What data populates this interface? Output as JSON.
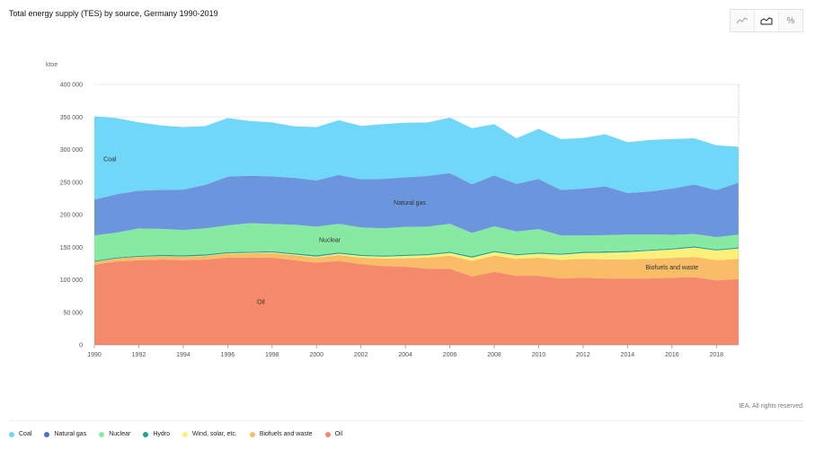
{
  "title": "Total energy supply (TES) by source, Germany 1990-2019",
  "toolbar": {
    "buttons": [
      {
        "icon": "line-chart-icon",
        "label": ""
      },
      {
        "icon": "area-chart-icon",
        "label": ""
      },
      {
        "icon": "percent-icon",
        "label": "%"
      }
    ]
  },
  "credit": "IEA. All rights reserved.",
  "chart_data": {
    "type": "area",
    "stacked": true,
    "title": "Total energy supply (TES) by source, Germany 1990-2019",
    "ylabel": "ktoe",
    "xlabel": "",
    "ylim": [
      0,
      400000
    ],
    "y_ticks": [
      0,
      50000,
      100000,
      150000,
      200000,
      250000,
      300000,
      350000,
      400000
    ],
    "y_tick_labels": [
      "0",
      "50 000",
      "100 000",
      "150 000",
      "200 000",
      "250 000",
      "300 000",
      "350 000",
      "400 000"
    ],
    "x_tick_labels": [
      "1990",
      "1992",
      "1994",
      "1996",
      "1998",
      "2000",
      "2002",
      "2004",
      "2006",
      "2008",
      "2010",
      "2012",
      "2014",
      "2016",
      "2018"
    ],
    "x": [
      1990,
      1991,
      1992,
      1993,
      1994,
      1995,
      1996,
      1997,
      1998,
      1999,
      2000,
      2001,
      2002,
      2003,
      2004,
      2005,
      2006,
      2007,
      2008,
      2009,
      2010,
      2011,
      2012,
      2013,
      2014,
      2015,
      2016,
      2017,
      2018,
      2019
    ],
    "grid": true,
    "legend": "bottom",
    "series": [
      {
        "name": "Oil",
        "color": "#f4896b",
        "values": [
          123000,
          128000,
          130000,
          131000,
          130000,
          131000,
          134000,
          134000,
          134000,
          130000,
          126000,
          129000,
          124000,
          121000,
          120000,
          117000,
          117000,
          105000,
          112000,
          106000,
          106000,
          102000,
          103000,
          102000,
          102000,
          102000,
          103000,
          104000,
          99000,
          101000
        ]
      },
      {
        "name": "Biofuels and waste",
        "color": "#f8bd66",
        "values": [
          4500,
          4700,
          4900,
          5100,
          5300,
          5600,
          6000,
          6500,
          7000,
          7500,
          8000,
          9000,
          10000,
          11500,
          13000,
          17000,
          20000,
          24000,
          25000,
          26000,
          28000,
          28500,
          29000,
          29500,
          29500,
          30000,
          30500,
          31000,
          31000,
          31000
        ]
      },
      {
        "name": "Wind, solar, etc.",
        "color": "#fdf07a",
        "values": [
          100,
          150,
          250,
          350,
          450,
          550,
          700,
          900,
          1100,
          1300,
          1600,
          2000,
          2500,
          3000,
          3500,
          3800,
          4200,
          5000,
          5300,
          5600,
          6000,
          8000,
          9000,
          10000,
          11000,
          12500,
          12800,
          14500,
          15000,
          16000
        ]
      },
      {
        "name": "Hydro",
        "color": "#1ba398",
        "values": [
          1500,
          1400,
          1600,
          1600,
          1700,
          1800,
          1700,
          1500,
          1600,
          1700,
          1900,
          1900,
          1800,
          1600,
          1800,
          1700,
          1700,
          1800,
          1800,
          1600,
          1800,
          1500,
          1800,
          1900,
          1700,
          1600,
          1700,
          1700,
          1500,
          1700
        ]
      },
      {
        "name": "Nuclear",
        "color": "#88eaa2",
        "values": [
          39000,
          38000,
          42000,
          40000,
          39000,
          40000,
          41000,
          44000,
          42000,
          44000,
          44000,
          44000,
          42000,
          42000,
          43000,
          42000,
          43000,
          36000,
          38000,
          35000,
          36000,
          28000,
          25000,
          25000,
          25000,
          23500,
          21000,
          19000,
          19000,
          19500
        ]
      },
      {
        "name": "Natural gas",
        "color": "#6b95dc",
        "values": [
          55000,
          59000,
          58000,
          60000,
          62000,
          67000,
          75000,
          73000,
          73000,
          72000,
          71000,
          75000,
          74000,
          76000,
          76000,
          78000,
          78000,
          75000,
          78000,
          73000,
          77000,
          70000,
          72000,
          75000,
          64000,
          66000,
          71000,
          76000,
          72000,
          80000
        ]
      },
      {
        "name": "Coal",
        "color": "#71d7f8",
        "values": [
          128000,
          117000,
          105000,
          99000,
          96000,
          90000,
          90000,
          84000,
          83000,
          79000,
          82000,
          84000,
          82000,
          84000,
          84000,
          82000,
          85000,
          86000,
          79000,
          70000,
          77000,
          78000,
          78000,
          80000,
          78000,
          79000,
          76000,
          71000,
          69000,
          55000
        ]
      }
    ],
    "annotations": [
      {
        "text": "Coal",
        "x": 1990.7,
        "y": 282000
      },
      {
        "text": "Natural gas",
        "x": 2004.2,
        "y": 215000
      },
      {
        "text": "Nuclear",
        "x": 2000.6,
        "y": 158000
      },
      {
        "text": "Biofuels and waste",
        "x": 2016.0,
        "y": 116000
      },
      {
        "text": "Oil",
        "x": 1997.5,
        "y": 63000
      }
    ]
  },
  "legend": [
    {
      "name": "Coal",
      "color": "#71d7f8"
    },
    {
      "name": "Natural gas",
      "color": "#4a74c8"
    },
    {
      "name": "Nuclear",
      "color": "#88eaa2"
    },
    {
      "name": "Hydro",
      "color": "#1ba398"
    },
    {
      "name": "Wind, solar, etc.",
      "color": "#fdf07a"
    },
    {
      "name": "Biofuels and waste",
      "color": "#f8bd66"
    },
    {
      "name": "Oil",
      "color": "#f4896b"
    }
  ]
}
